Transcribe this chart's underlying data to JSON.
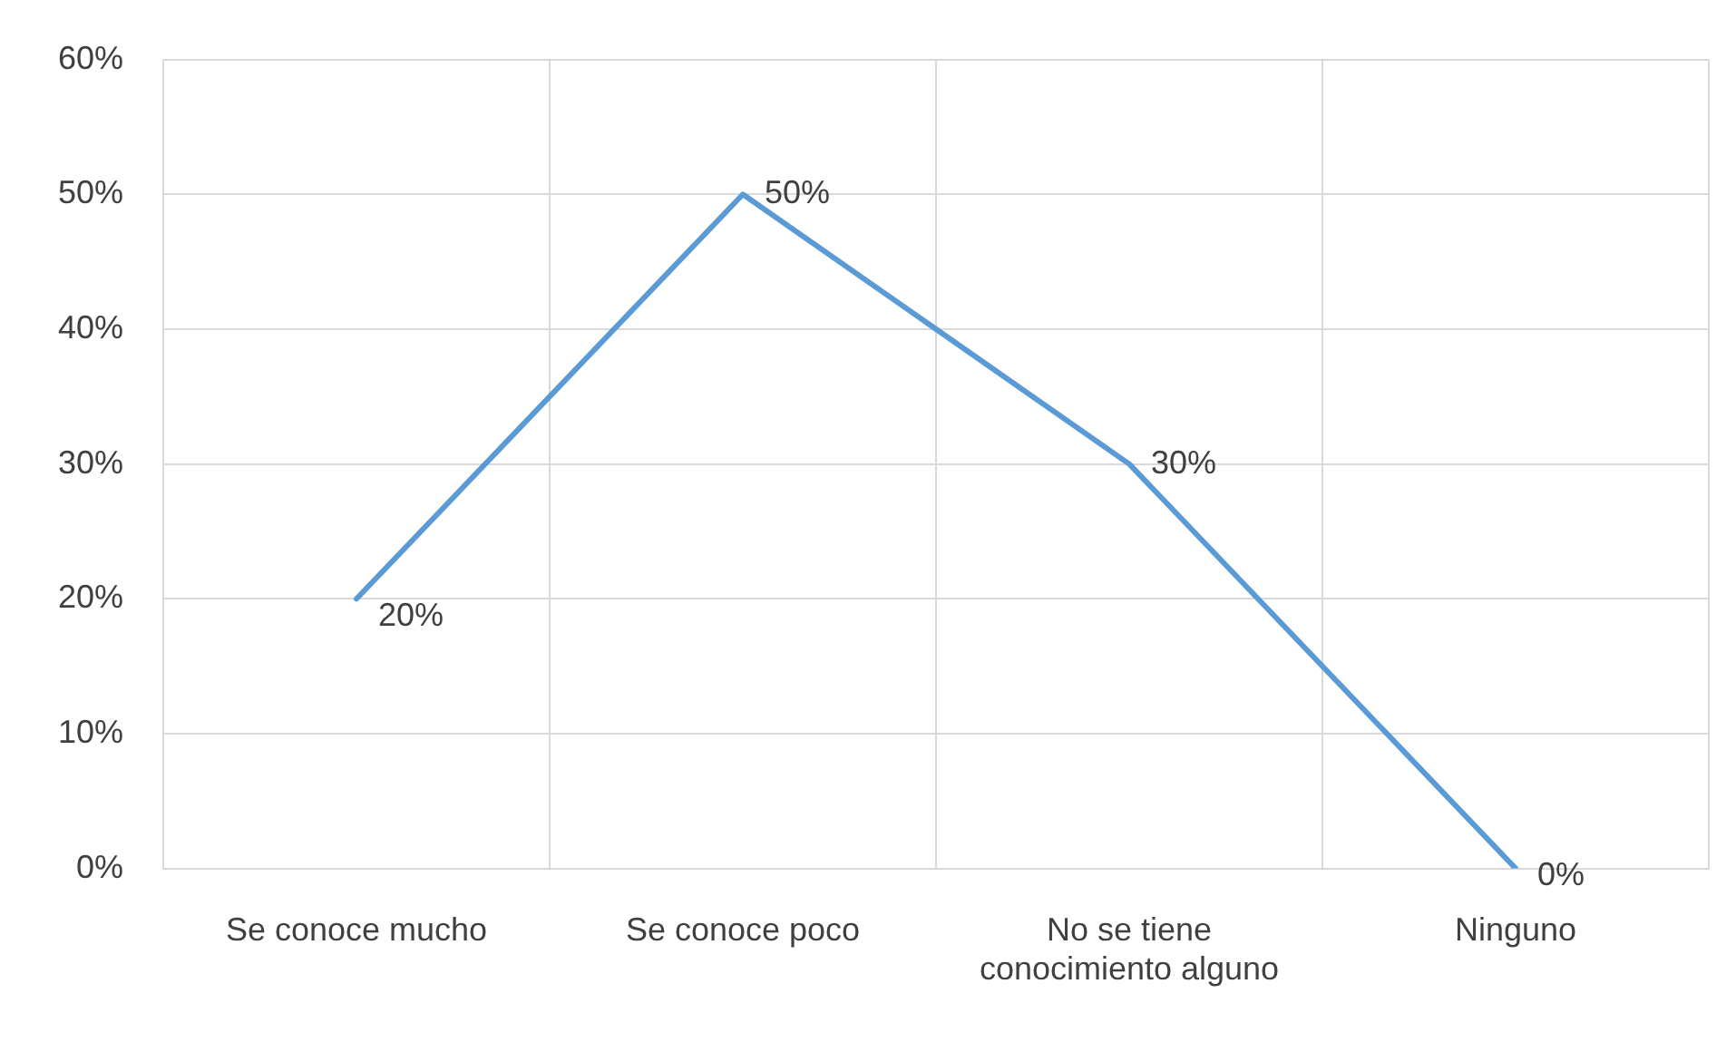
{
  "chart_data": {
    "type": "line",
    "categories": [
      "Se conoce mucho",
      "Se conoce poco",
      "No se tiene conocimiento alguno",
      "Ninguno"
    ],
    "series": [
      {
        "color": "#5b9bd5",
        "values": [
          20,
          50,
          30,
          0
        ],
        "value_labels": [
          "20%",
          "50%",
          "30%",
          "0%"
        ]
      }
    ],
    "ylim": [
      0,
      60
    ],
    "yticks": [
      {
        "value": 0,
        "label": "0%"
      },
      {
        "value": 10,
        "label": "10%"
      },
      {
        "value": 20,
        "label": "20%"
      },
      {
        "value": 30,
        "label": "30%"
      },
      {
        "value": 40,
        "label": "40%"
      },
      {
        "value": 50,
        "label": "50%"
      },
      {
        "value": 60,
        "label": "60%"
      }
    ],
    "grid": true,
    "legend": false,
    "marker": "none",
    "line_style": "solid"
  }
}
